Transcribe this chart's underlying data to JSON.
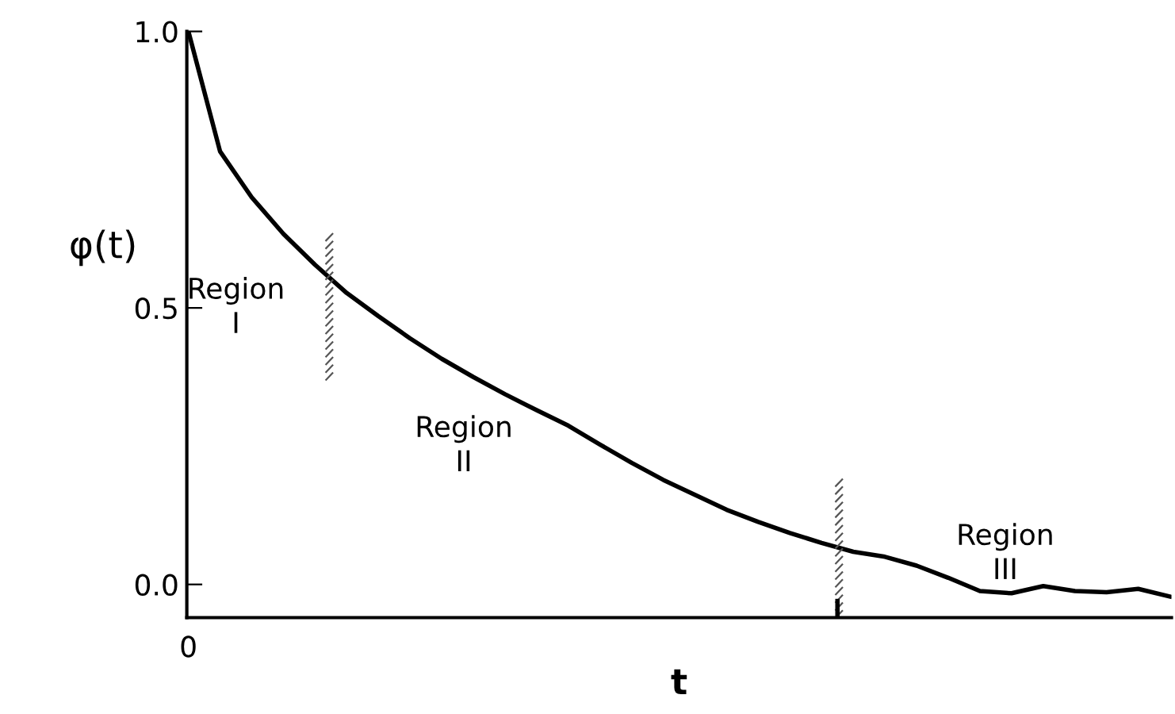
{
  "chart_data": {
    "type": "line",
    "categories": [
      "0",
      null,
      null,
      null,
      null,
      null,
      null,
      null,
      null,
      null,
      null,
      null,
      null,
      null,
      null,
      null,
      null,
      null,
      null,
      null,
      null,
      null,
      null,
      null,
      null,
      null,
      null,
      null,
      null,
      null,
      null,
      null
    ],
    "series": [
      {
        "color": "#000000",
        "values": [
          1.0,
          0.783,
          0.7,
          0.634,
          0.578,
          0.527,
          0.485,
          0.445,
          0.408,
          0.375,
          0.344,
          0.315,
          0.287,
          0.253,
          0.22,
          0.189,
          0.162,
          0.135,
          0.113,
          0.093,
          0.075,
          0.059,
          0.05,
          0.034,
          0.012,
          -0.012,
          -0.016,
          -0.003,
          -0.012,
          -0.014,
          -0.008,
          -0.022
        ]
      }
    ],
    "ylim": [
      -0.06,
      1.0
    ],
    "yticks": [
      {
        "value": 1,
        "label": "1.0"
      },
      {
        "value": 0.5,
        "label": "0.5"
      },
      {
        "value": 0,
        "label": "0.0"
      }
    ],
    "xlabel": "t",
    "ylabel": "φ(t)",
    "annotations": [
      "Region\nI",
      "Region\nII",
      "Region\nIII"
    ],
    "marker": "none",
    "line_style": "solid"
  }
}
